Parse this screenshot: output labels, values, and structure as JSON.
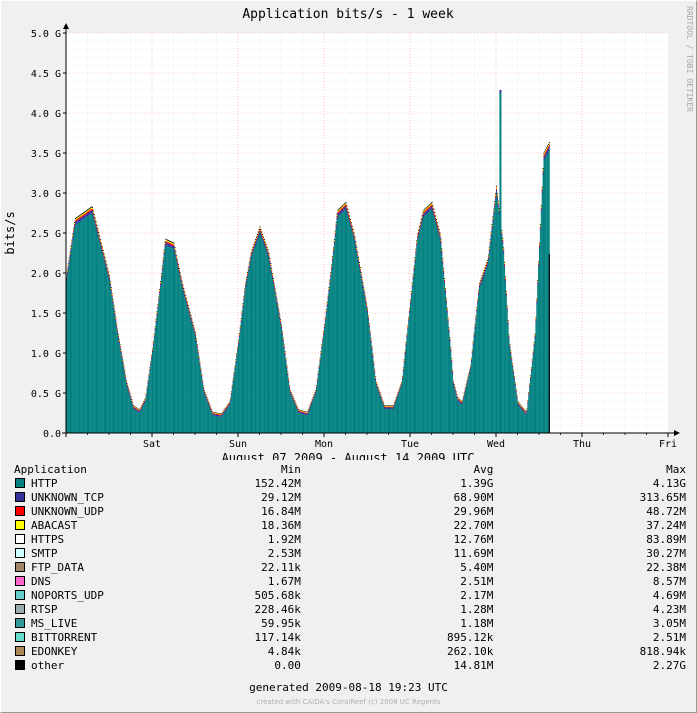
{
  "chart_data": {
    "type": "area",
    "title": "Application bits/s - 1 week",
    "ylabel": "bits/s",
    "xlabel": "August 07 2009 - August 14 2009 UTC",
    "yticks": [
      "0.0",
      "0.5 G",
      "1.0 G",
      "1.5 G",
      "2.0 G",
      "2.5 G",
      "3.0 G",
      "3.5 G",
      "4.0 G",
      "4.5 G",
      "5.0 G"
    ],
    "ylim": [
      0,
      5.0
    ],
    "y_unit": "Gbit/s",
    "xticks": [
      "Sat",
      "Sun",
      "Mon",
      "Tue",
      "Wed",
      "Thu",
      "Fri"
    ],
    "xlim_days": [
      0,
      7
    ],
    "grid": true,
    "stack_colors": [
      "#008080",
      "#333399",
      "#ff0000",
      "#ffff00",
      "#ffffff",
      "#ccffff",
      "#a0866a",
      "#ff66cc",
      "#66cccc",
      "#99aaaa",
      "#339999",
      "#66ddcc",
      "#aa8855",
      "#000000"
    ],
    "total_series": {
      "name": "HTTP",
      "x_days": [
        0,
        0.1,
        0.3,
        0.5,
        0.6,
        0.7,
        0.78,
        0.85,
        0.92,
        1.0,
        1.08,
        1.15,
        1.25,
        1.35,
        1.5,
        1.6,
        1.7,
        1.8,
        1.9,
        2.0,
        2.08,
        2.15,
        2.25,
        2.35,
        2.5,
        2.6,
        2.7,
        2.8,
        2.9,
        3.0,
        3.08,
        3.15,
        3.25,
        3.35,
        3.5,
        3.6,
        3.7,
        3.8,
        3.9,
        4.0,
        4.08,
        4.15,
        4.25,
        4.35,
        4.47,
        4.5,
        4.55,
        4.6,
        4.7,
        4.8,
        4.9,
        5.0,
        5.08,
        5.15,
        5.25,
        5.35,
        5.45,
        5.55,
        5.62
      ],
      "y_gbps": [
        1.9,
        2.6,
        2.75,
        1.9,
        1.2,
        0.6,
        0.3,
        0.25,
        0.4,
        1.0,
        1.7,
        2.35,
        2.3,
        1.8,
        1.2,
        0.5,
        0.22,
        0.2,
        0.35,
        1.1,
        1.8,
        2.2,
        2.5,
        2.2,
        1.3,
        0.5,
        0.25,
        0.22,
        0.5,
        1.3,
        2.0,
        2.7,
        2.8,
        2.4,
        1.5,
        0.6,
        0.3,
        0.3,
        0.6,
        1.6,
        2.4,
        2.7,
        2.8,
        2.4,
        1.0,
        0.6,
        0.4,
        0.35,
        0.8,
        1.8,
        2.1,
        3.0,
        2.3,
        1.1,
        0.35,
        0.22,
        1.2,
        3.4,
        3.55
      ]
    },
    "series_stats": {
      "columns": [
        "Application",
        "Min",
        "Avg",
        "Max"
      ],
      "rows": [
        {
          "name": "HTTP",
          "color": "#008080",
          "min": "152.42M",
          "avg": "1.39G",
          "max": "4.13G"
        },
        {
          "name": "UNKNOWN_TCP",
          "color": "#333399",
          "min": "29.12M",
          "avg": "68.90M",
          "max": "313.65M"
        },
        {
          "name": "UNKNOWN_UDP",
          "color": "#ff0000",
          "min": "16.84M",
          "avg": "29.96M",
          "max": "48.72M"
        },
        {
          "name": "ABACAST",
          "color": "#ffff00",
          "min": "18.36M",
          "avg": "22.70M",
          "max": "37.24M"
        },
        {
          "name": "HTTPS",
          "color": "#ffffff",
          "min": "1.92M",
          "avg": "12.76M",
          "max": "83.89M"
        },
        {
          "name": "SMTP",
          "color": "#ccffff",
          "min": "2.53M",
          "avg": "11.69M",
          "max": "30.27M"
        },
        {
          "name": "FTP_DATA",
          "color": "#a0866a",
          "min": "22.11k",
          "avg": "5.40M",
          "max": "22.38M"
        },
        {
          "name": "DNS",
          "color": "#ff66cc",
          "min": "1.67M",
          "avg": "2.51M",
          "max": "8.57M"
        },
        {
          "name": "NOPORTS_UDP",
          "color": "#66cccc",
          "min": "505.68k",
          "avg": "2.17M",
          "max": "4.69M"
        },
        {
          "name": "RTSP",
          "color": "#99aaaa",
          "min": "228.46k",
          "avg": "1.28M",
          "max": "4.23M"
        },
        {
          "name": "MS_LIVE",
          "color": "#339999",
          "min": "59.95k",
          "avg": "1.18M",
          "max": "3.05M"
        },
        {
          "name": "BITTORRENT",
          "color": "#66ddcc",
          "min": "117.14k",
          "avg": "895.12k",
          "max": "2.51M"
        },
        {
          "name": "EDONKEY",
          "color": "#aa8855",
          "min": "4.84k",
          "avg": "262.10k",
          "max": "818.94k"
        },
        {
          "name": "other",
          "color": "#000000",
          "min": "0.00",
          "avg": "14.81M",
          "max": "2.27G"
        }
      ]
    }
  },
  "footer": {
    "generated": "generated 2009-08-18 19:23 UTC",
    "credit": "created with CAIDA's CoralReef (c) 2008 UC Regents",
    "watermark": "RRDTOOL / TOBI OETIKER"
  }
}
